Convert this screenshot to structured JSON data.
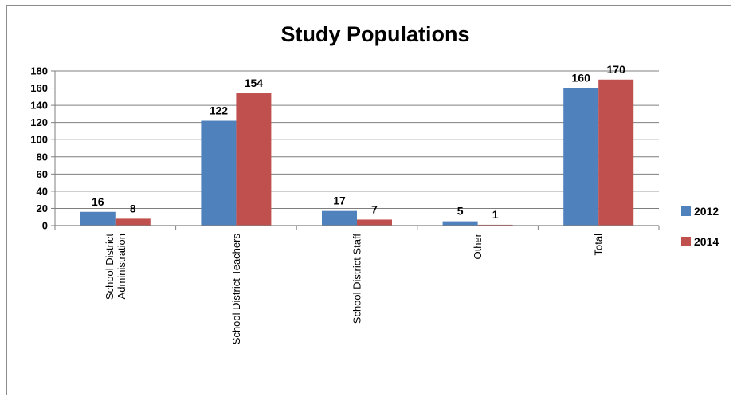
{
  "chart_data": {
    "type": "bar",
    "title": "Study Populations",
    "xlabel": "",
    "ylabel": "",
    "ylim": [
      0,
      180
    ],
    "ytick_step": 20,
    "grid": true,
    "legend_position": "right",
    "categories": [
      [
        "School District",
        "Administration"
      ],
      [
        "School District Teachers"
      ],
      [
        "School District Staff"
      ],
      [
        "Other"
      ],
      [
        "Total"
      ]
    ],
    "series": [
      {
        "name": "2012",
        "color": "#4f81bd",
        "values": [
          16,
          122,
          17,
          5,
          160
        ]
      },
      {
        "name": "2014",
        "color": "#c0504d",
        "values": [
          8,
          154,
          7,
          1,
          170
        ]
      }
    ]
  }
}
